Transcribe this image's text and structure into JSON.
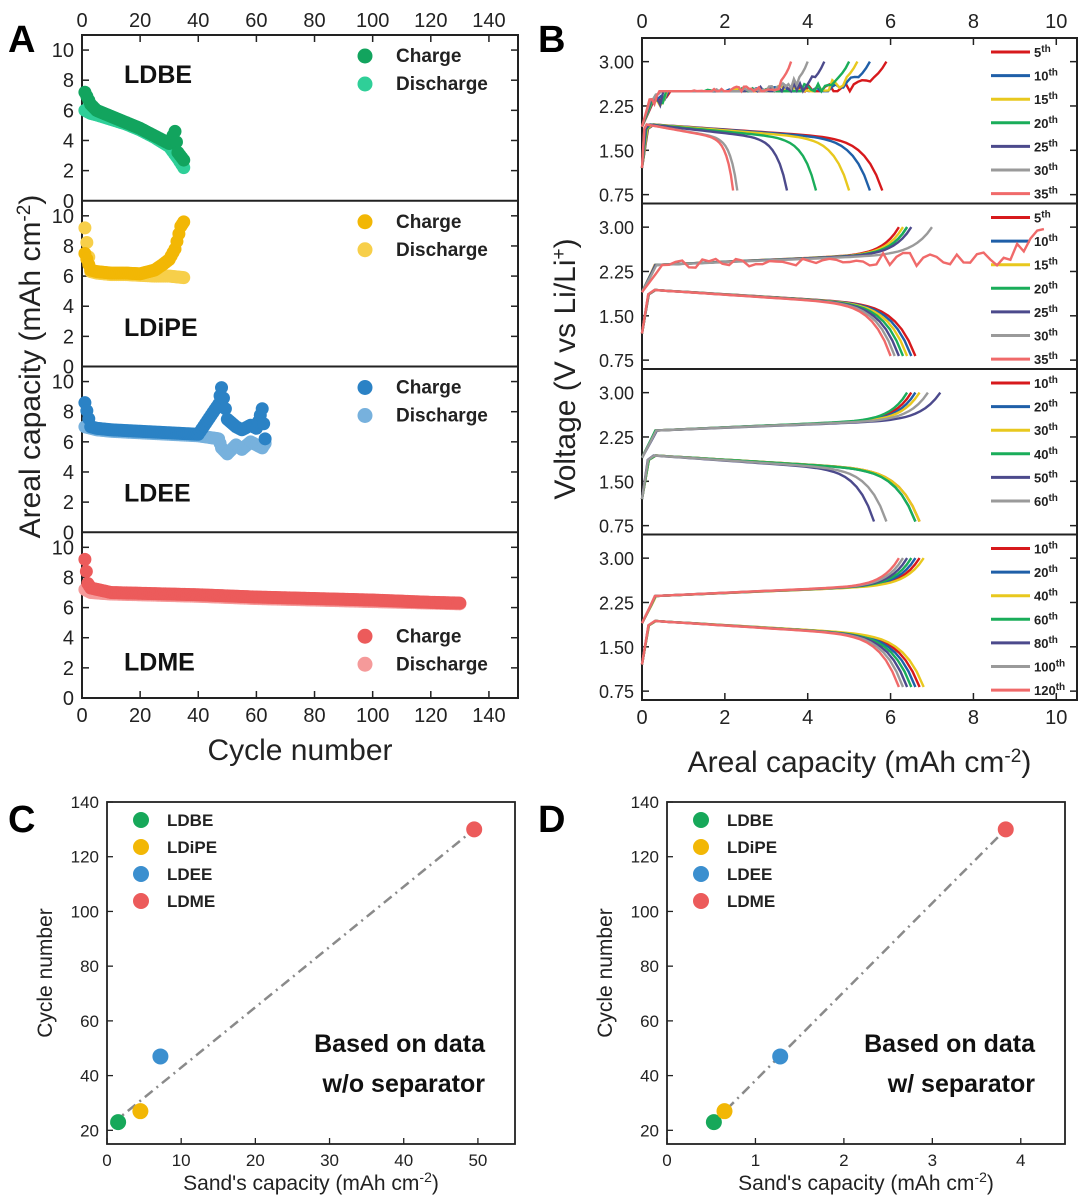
{
  "panel_labels": {
    "A": "A",
    "B": "B",
    "C": "C",
    "D": "D"
  },
  "chart_data": [
    {
      "id": "A",
      "type": "scatter",
      "xlabel": "Cycle number",
      "ylabel": "Areal capacity (mAh cm-2)",
      "ylabel_main": "Areal capacity (mAh cm",
      "ylabel_sup": "-2",
      "ylabel_tail": ")",
      "xlim": [
        0,
        150
      ],
      "ylim": [
        0,
        11
      ],
      "xticks": [
        "0",
        "20",
        "40",
        "60",
        "80",
        "100",
        "120",
        "140"
      ],
      "yticks": [
        "0",
        "2",
        "4",
        "6",
        "8",
        "10"
      ],
      "legend_labels": [
        "Charge",
        "Discharge"
      ],
      "subplots": [
        {
          "name": "LDBE",
          "colors": [
            "#12a45e",
            "#2fcf98"
          ],
          "charge": [
            [
              1,
              7.2
            ],
            [
              3,
              6.4
            ],
            [
              5,
              6.0
            ],
            [
              10,
              5.6
            ],
            [
              15,
              5.2
            ],
            [
              20,
              4.8
            ],
            [
              25,
              4.3
            ],
            [
              30,
              3.8
            ],
            [
              32,
              4.6
            ],
            [
              33,
              3.2
            ],
            [
              35,
              2.7
            ]
          ],
          "discharge": [
            [
              1,
              6.0
            ],
            [
              3,
              5.8
            ],
            [
              5,
              5.7
            ],
            [
              10,
              5.4
            ],
            [
              15,
              5.1
            ],
            [
              20,
              4.7
            ],
            [
              25,
              4.2
            ],
            [
              30,
              3.6
            ],
            [
              33,
              2.8
            ],
            [
              35,
              2.2
            ]
          ]
        },
        {
          "name": "LDiPE",
          "colors": [
            "#f2b705",
            "#f7cf4a"
          ],
          "charge": [
            [
              1,
              7.5
            ],
            [
              3,
              6.4
            ],
            [
              5,
              6.3
            ],
            [
              10,
              6.2
            ],
            [
              15,
              6.2
            ],
            [
              20,
              6.15
            ],
            [
              25,
              6.4
            ],
            [
              28,
              6.8
            ],
            [
              30,
              7.1
            ],
            [
              32,
              7.8
            ],
            [
              34,
              9.3
            ],
            [
              35,
              9.6
            ]
          ],
          "discharge": [
            [
              1,
              9.2
            ],
            [
              3,
              6.3
            ],
            [
              5,
              6.2
            ],
            [
              10,
              6.1
            ],
            [
              15,
              6.1
            ],
            [
              20,
              6.05
            ],
            [
              25,
              6.0
            ],
            [
              30,
              6.0
            ],
            [
              35,
              5.9
            ]
          ]
        },
        {
          "name": "LDEE",
          "colors": [
            "#2b82c5",
            "#77b1dd"
          ],
          "charge": [
            [
              1,
              8.6
            ],
            [
              3,
              7.0
            ],
            [
              5,
              6.9
            ],
            [
              10,
              6.8
            ],
            [
              20,
              6.7
            ],
            [
              30,
              6.6
            ],
            [
              40,
              6.5
            ],
            [
              47,
              8.5
            ],
            [
              48,
              9.6
            ],
            [
              50,
              7.5
            ],
            [
              53,
              7.0
            ],
            [
              55,
              6.8
            ],
            [
              58,
              7.1
            ],
            [
              60,
              6.9
            ],
            [
              62,
              8.2
            ],
            [
              63,
              6.2
            ]
          ],
          "discharge": [
            [
              1,
              7.0
            ],
            [
              3,
              6.9
            ],
            [
              5,
              6.8
            ],
            [
              10,
              6.7
            ],
            [
              20,
              6.6
            ],
            [
              30,
              6.5
            ],
            [
              40,
              6.4
            ],
            [
              47,
              6.2
            ],
            [
              48,
              5.6
            ],
            [
              50,
              5.2
            ],
            [
              53,
              5.8
            ],
            [
              55,
              5.5
            ],
            [
              58,
              6.0
            ],
            [
              60,
              5.8
            ],
            [
              62,
              5.6
            ],
            [
              63,
              5.9
            ]
          ]
        },
        {
          "name": "LDME",
          "colors": [
            "#ec5b5b",
            "#f59a9a"
          ],
          "charge": [
            [
              1,
              9.2
            ],
            [
              2,
              7.6
            ],
            [
              3,
              7.3
            ],
            [
              10,
              7.0
            ],
            [
              20,
              6.95
            ],
            [
              40,
              6.85
            ],
            [
              60,
              6.7
            ],
            [
              80,
              6.6
            ],
            [
              100,
              6.5
            ],
            [
              120,
              6.35
            ],
            [
              130,
              6.3
            ]
          ],
          "discharge": [
            [
              1,
              7.2
            ],
            [
              2,
              7.1
            ],
            [
              3,
              7.0
            ],
            [
              10,
              6.9
            ],
            [
              20,
              6.85
            ],
            [
              40,
              6.75
            ],
            [
              60,
              6.6
            ],
            [
              80,
              6.5
            ],
            [
              100,
              6.4
            ],
            [
              120,
              6.3
            ],
            [
              130,
              6.25
            ]
          ]
        }
      ]
    },
    {
      "id": "B",
      "type": "line",
      "xlabel": "Areal capacity (mAh cm-2)",
      "xlabel_main": "Areal capacity (mAh cm",
      "xlabel_sup": "-2",
      "xlabel_tail": ")",
      "ylabel": "Voltage (V vs Li/Li+)",
      "ylabel_main": "Voltage (V vs Li/Li",
      "ylabel_sup": "+",
      "ylabel_tail": ")",
      "xlim": [
        0,
        10.5
      ],
      "ylim": [
        0.6,
        3.4
      ],
      "xticks": [
        "0",
        "2",
        "4",
        "6",
        "8",
        "10"
      ],
      "yticks": [
        "0.75",
        "1.50",
        "2.25",
        "3.00"
      ],
      "subplots": [
        {
          "name": "LDBE",
          "series": [
            {
              "name": "5",
              "sup": "th",
              "color": "#d7191c",
              "charge_end": 5.9,
              "discharge_end": 5.8
            },
            {
              "name": "10",
              "sup": "th",
              "color": "#1f5fa8",
              "charge_end": 5.5,
              "discharge_end": 5.5
            },
            {
              "name": "15",
              "sup": "th",
              "color": "#e8c81e",
              "charge_end": 5.2,
              "discharge_end": 5.0
            },
            {
              "name": "20",
              "sup": "th",
              "color": "#1aad5a",
              "charge_end": 5.0,
              "discharge_end": 4.2
            },
            {
              "name": "25",
              "sup": "th",
              "color": "#4c4a8c",
              "charge_end": 4.4,
              "discharge_end": 3.5
            },
            {
              "name": "30",
              "sup": "th",
              "color": "#9a9a9a",
              "charge_end": 4.0,
              "discharge_end": 2.3
            },
            {
              "name": "35",
              "sup": "th",
              "color": "#f06a6a",
              "charge_end": 3.6,
              "discharge_end": 2.2
            }
          ]
        },
        {
          "name": "LDiPE",
          "series": [
            {
              "name": "5",
              "sup": "th",
              "color": "#d7191c",
              "charge_end": 6.2,
              "discharge_end": 6.6
            },
            {
              "name": "10",
              "sup": "th",
              "color": "#1f5fa8",
              "charge_end": 6.4,
              "discharge_end": 6.5
            },
            {
              "name": "15",
              "sup": "th",
              "color": "#e8c81e",
              "charge_end": 6.3,
              "discharge_end": 6.4
            },
            {
              "name": "20",
              "sup": "th",
              "color": "#1aad5a",
              "charge_end": 6.4,
              "discharge_end": 6.3
            },
            {
              "name": "25",
              "sup": "th",
              "color": "#4c4a8c",
              "charge_end": 6.5,
              "discharge_end": 6.2
            },
            {
              "name": "30",
              "sup": "th",
              "color": "#9a9a9a",
              "charge_end": 7.0,
              "discharge_end": 6.1
            },
            {
              "name": "35",
              "sup": "th",
              "color": "#f06a6a",
              "charge_end": 9.7,
              "discharge_end": 6.0
            }
          ]
        },
        {
          "name": "LDEE",
          "series": [
            {
              "name": "10",
              "sup": "th",
              "color": "#d7191c",
              "charge_end": 6.5,
              "discharge_end": 6.7
            },
            {
              "name": "20",
              "sup": "th",
              "color": "#1f5fa8",
              "charge_end": 6.6,
              "discharge_end": 6.6
            },
            {
              "name": "30",
              "sup": "th",
              "color": "#e8c81e",
              "charge_end": 6.7,
              "discharge_end": 6.7
            },
            {
              "name": "40",
              "sup": "th",
              "color": "#1aad5a",
              "charge_end": 6.4,
              "discharge_end": 6.6
            },
            {
              "name": "50",
              "sup": "th",
              "color": "#4c4a8c",
              "charge_end": 7.2,
              "discharge_end": 5.6
            },
            {
              "name": "60",
              "sup": "th",
              "color": "#9a9a9a",
              "charge_end": 6.9,
              "discharge_end": 5.9
            }
          ]
        },
        {
          "name": "LDME",
          "series": [
            {
              "name": "10",
              "sup": "th",
              "color": "#d7191c",
              "charge_end": 6.7,
              "discharge_end": 6.7
            },
            {
              "name": "20",
              "sup": "th",
              "color": "#1f5fa8",
              "charge_end": 6.6,
              "discharge_end": 6.6
            },
            {
              "name": "40",
              "sup": "th",
              "color": "#e8c81e",
              "charge_end": 6.8,
              "discharge_end": 6.8
            },
            {
              "name": "60",
              "sup": "th",
              "color": "#1aad5a",
              "charge_end": 6.5,
              "discharge_end": 6.5
            },
            {
              "name": "80",
              "sup": "th",
              "color": "#4c4a8c",
              "charge_end": 6.4,
              "discharge_end": 6.4
            },
            {
              "name": "100",
              "sup": "th",
              "color": "#9a9a9a",
              "charge_end": 6.3,
              "discharge_end": 6.3
            },
            {
              "name": "120",
              "sup": "th",
              "color": "#f06a6a",
              "charge_end": 6.2,
              "discharge_end": 6.2
            }
          ]
        }
      ]
    },
    {
      "id": "C",
      "type": "scatter",
      "xlabel": "Sand's capacity (mAh cm-2)",
      "xlabel_main": "Sand's capacity (mAh cm",
      "xlabel_sup": "-2",
      "xlabel_tail": ")",
      "ylabel": "Cycle number",
      "xlim": [
        0,
        55
      ],
      "ylim": [
        15,
        140
      ],
      "xticks": [
        "0",
        "10",
        "20",
        "30",
        "40",
        "50"
      ],
      "yticks": [
        "20",
        "40",
        "60",
        "80",
        "100",
        "120",
        "140"
      ],
      "points": [
        {
          "name": "LDBE",
          "x": 1.5,
          "y": 23,
          "color": "#17a85a"
        },
        {
          "name": "LDiPE",
          "x": 4.5,
          "y": 27,
          "color": "#f2b705"
        },
        {
          "name": "LDEE",
          "x": 7.2,
          "y": 47,
          "color": "#3b8fcf"
        },
        {
          "name": "LDME",
          "x": 49.5,
          "y": 130,
          "color": "#ec5b5b"
        }
      ],
      "fit": [
        [
          0.5,
          22
        ],
        [
          49.5,
          130
        ]
      ],
      "note_lines": [
        "Based on data",
        "w/o separator"
      ]
    },
    {
      "id": "D",
      "type": "scatter",
      "xlabel": "Sand's capacity (mAh cm-2)",
      "xlabel_main": "Sand's capacity (mAh cm",
      "xlabel_sup": "-2",
      "xlabel_tail": ")",
      "ylabel": "Cycle number",
      "xlim": [
        0,
        4.5
      ],
      "ylim": [
        15,
        140
      ],
      "xticks": [
        "0",
        "1",
        "2",
        "3",
        "4"
      ],
      "yticks": [
        "20",
        "40",
        "60",
        "80",
        "100",
        "120",
        "140"
      ],
      "points": [
        {
          "name": "LDBE",
          "x": 0.53,
          "y": 23,
          "color": "#17a85a"
        },
        {
          "name": "LDiPE",
          "x": 0.65,
          "y": 27,
          "color": "#f2b705"
        },
        {
          "name": "LDEE",
          "x": 1.28,
          "y": 47,
          "color": "#3b8fcf"
        },
        {
          "name": "LDME",
          "x": 3.83,
          "y": 130,
          "color": "#ec5b5b"
        }
      ],
      "fit": [
        [
          0.5,
          22
        ],
        [
          3.83,
          130
        ]
      ],
      "note_lines": [
        "Based on data",
        "w/ separator"
      ]
    }
  ]
}
